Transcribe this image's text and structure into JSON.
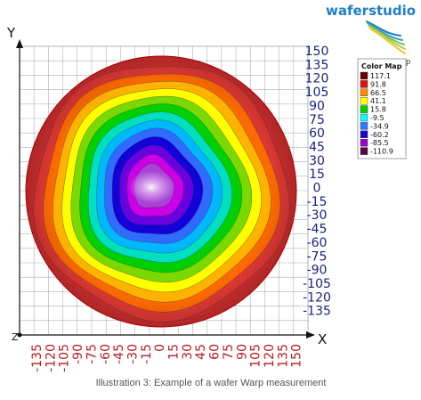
{
  "brand": {
    "logo_text": "waferstudio",
    "subtitle": "Warp",
    "colors": {
      "blue": "#1e7fc4",
      "green": "#7cc243",
      "yellow": "#f5c431"
    }
  },
  "axes": {
    "x_letter": "X",
    "y_letter": "Y",
    "z_letter": "Z",
    "x_ticks": [
      "-135",
      "-120",
      "-105",
      "-90",
      "-75",
      "-60",
      "-45",
      "-30",
      "-15",
      "0",
      "15",
      "30",
      "45",
      "60",
      "75",
      "90",
      "105",
      "120",
      "135",
      "150"
    ],
    "y_ticks": [
      "150",
      "135",
      "120",
      "105",
      "90",
      "75",
      "60",
      "45",
      "30",
      "15",
      "0",
      "-15",
      "-30",
      "-45",
      "-60",
      "-75",
      "-90",
      "-105",
      "-120",
      "-135"
    ],
    "x_tick_color": "#b71c1c",
    "y_tick_color": "#1a237e"
  },
  "legend": {
    "title": "Color Map",
    "entries": [
      {
        "label": "117.1",
        "color": "#6b0000"
      },
      {
        "label": "91.8",
        "color": "#e01010"
      },
      {
        "label": "66.5",
        "color": "#ff8a00"
      },
      {
        "label": "41.1",
        "color": "#ffff00"
      },
      {
        "label": "15.8",
        "color": "#00d000"
      },
      {
        "label": "-9.5",
        "color": "#00ffff"
      },
      {
        "label": "-34.9",
        "color": "#2b7bff"
      },
      {
        "label": "-60.2",
        "color": "#2200d0"
      },
      {
        "label": "-85.5",
        "color": "#9c00d0"
      },
      {
        "label": "-110.9",
        "color": "#5a004a"
      }
    ]
  },
  "map_colors": [
    "#e53935",
    "#ff6a00",
    "#ffb300",
    "#ffff00",
    "#7ad900",
    "#00d000",
    "#00e0c0",
    "#00b8ff",
    "#2f6bff",
    "#1400d8",
    "#6a00e0",
    "#cc00e6",
    "#a742d6"
  ],
  "caption": "Illustration 3: Example of a wafer Warp measurement"
}
